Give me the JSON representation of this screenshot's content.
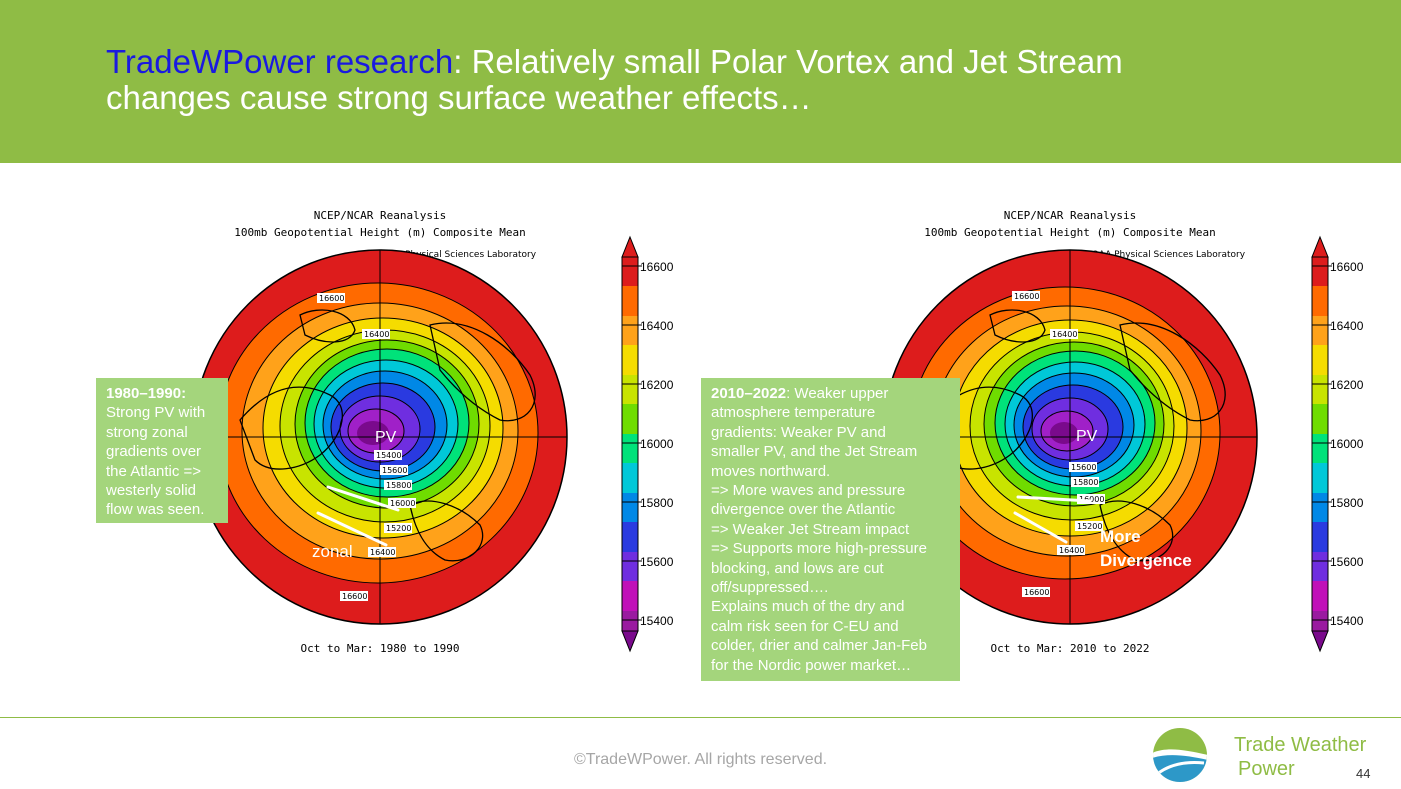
{
  "header": {
    "title_accent": "TradeWPower research",
    "title_rest": ": Relatively small Polar Vortex and Jet Stream changes cause strong surface weather effects…"
  },
  "left_map": {
    "title_line1": "NCEP/NCAR Reanalysis",
    "title_line2": "100mb Geopotential Height (m) Composite Mean",
    "source": "NOAA Physical Sciences Laboratory",
    "period": "Oct to Mar: 1980 to 1990",
    "pv_label": "PV",
    "flow_label": "zonal",
    "contours": [
      "16600",
      "16400",
      "15400",
      "15600",
      "15800",
      "16000",
      "15200",
      "16400",
      "16600"
    ],
    "colorbar_ticks": [
      "16600",
      "16400",
      "16200",
      "16000",
      "15800",
      "15600",
      "15400"
    ]
  },
  "right_map": {
    "title_line1": "NCEP/NCAR Reanalysis",
    "title_line2": "100mb Geopotential Height (m) Composite Mean",
    "source": "NOAA Physical Sciences Laboratory",
    "period": "Oct to Mar: 2010 to 2022",
    "pv_label": "PV",
    "flow_label_line1": "More",
    "flow_label_line2": "Divergence",
    "contours": [
      "16600",
      "16400",
      "15600",
      "15800",
      "16000",
      "15200",
      "16400",
      "16600"
    ],
    "colorbar_ticks": [
      "16600",
      "16400",
      "16200",
      "16000",
      "15800",
      "15600",
      "15400"
    ]
  },
  "left_note": {
    "heading": "1980–1990:",
    "lines": [
      "Strong PV with",
      "strong zonal",
      "gradients over",
      "the Atlantic =>",
      "westerly solid",
      "flow was seen."
    ]
  },
  "right_note": {
    "heading": "2010–2022",
    "heading_rest": ": Weaker upper",
    "lines": [
      "atmosphere temperature",
      "gradients: Weaker PV and",
      "smaller PV, and the Jet Stream",
      "moves northward.",
      "=>  More waves and pressure",
      "divergence over the Atlantic",
      "=> Weaker Jet Stream impact",
      "=> Supports more high-pressure",
      "blocking, and lows are cut",
      "off/suppressed….",
      "Explains much of the dry and",
      "calm risk seen for C-EU and",
      "colder, drier and calmer Jan-Feb",
      "for the Nordic power market…"
    ]
  },
  "footer": {
    "copyright": "©TradeWPower. All rights reserved.",
    "brand_line1": "Trade Weather",
    "brand_line2": "Power",
    "page_number": "44"
  },
  "colors": {
    "header_green": "#8fbc45",
    "title_accent": "#1a1ae0",
    "note_green": "#a4d57c"
  }
}
